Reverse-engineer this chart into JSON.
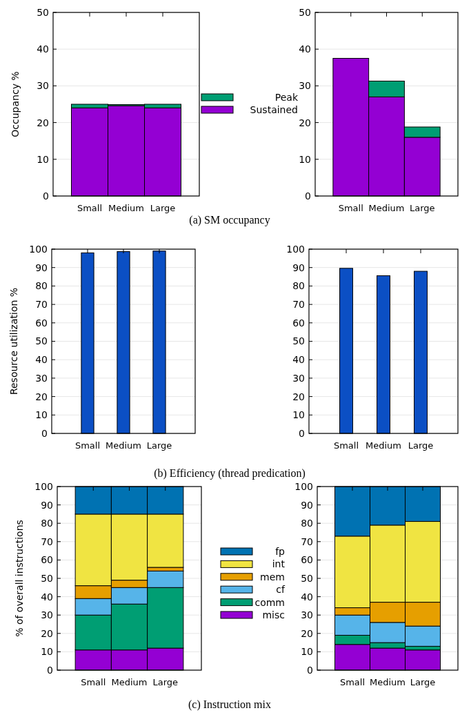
{
  "chart_data": [
    {
      "type": "bar",
      "stacked": true,
      "categories": [
        "Small",
        "Medium",
        "Large"
      ],
      "ylabel": "Occupancy %",
      "ylim": [
        0,
        50
      ],
      "yticks": [
        0,
        10,
        20,
        30,
        40,
        50
      ],
      "grid": "y",
      "legend": "right",
      "annotations": [
        "(a) SM occupancy"
      ],
      "series": [
        {
          "name": "Sustained",
          "color": "#9400d3",
          "values": [
            24,
            24.6,
            24
          ]
        },
        {
          "name": "Peak",
          "color": "#009e73",
          "values": [
            1,
            0.3,
            1
          ]
        }
      ]
    },
    {
      "type": "bar",
      "stacked": true,
      "categories": [
        "Small",
        "Medium",
        "Large"
      ],
      "ylim": [
        0,
        50
      ],
      "yticks": [
        0,
        10,
        20,
        30,
        40,
        50
      ],
      "grid": "y",
      "series": [
        {
          "color": "#9400d3",
          "values": [
            37.5,
            27,
            16
          ]
        },
        {
          "color": "#009e73",
          "values": [
            0,
            4.3,
            2.8
          ]
        }
      ]
    },
    {
      "type": "bar",
      "categories": [
        "Small",
        "Medium",
        "Large"
      ],
      "ylabel": "Resource utilization %",
      "ylim": [
        0,
        100
      ],
      "yticks": [
        0,
        10,
        20,
        30,
        40,
        50,
        60,
        70,
        80,
        90,
        100
      ],
      "grid": "y",
      "annotations": [
        "(b) Efficiency (thread predication)"
      ],
      "series": [
        {
          "color": "#0b4fc4",
          "values": [
            98,
            98.7,
            99
          ]
        }
      ]
    },
    {
      "type": "bar",
      "categories": [
        "Small",
        "Medium",
        "Large"
      ],
      "ylim": [
        0,
        100
      ],
      "yticks": [
        0,
        10,
        20,
        30,
        40,
        50,
        60,
        70,
        80,
        90,
        100
      ],
      "grid": "y",
      "series": [
        {
          "color": "#0b4fc4",
          "values": [
            89.6,
            85.6,
            88
          ]
        }
      ]
    },
    {
      "type": "bar",
      "stacked": true,
      "categories": [
        "Small",
        "Medium",
        "Large"
      ],
      "ylabel": "% of overall instructions",
      "ylim": [
        0,
        100
      ],
      "yticks": [
        0,
        10,
        20,
        30,
        40,
        50,
        60,
        70,
        80,
        90,
        100
      ],
      "grid": "y",
      "legend": "right",
      "annotations": [
        "(c) Instruction mix"
      ],
      "series": [
        {
          "name": "misc",
          "color": "#9400d3",
          "values": [
            11,
            11,
            12
          ]
        },
        {
          "name": "comm",
          "color": "#009e73",
          "values": [
            19,
            25,
            33
          ]
        },
        {
          "name": "cf",
          "color": "#56b4e9",
          "values": [
            9,
            9,
            9
          ]
        },
        {
          "name": "mem",
          "color": "#e69f00",
          "values": [
            7,
            4,
            2
          ]
        },
        {
          "name": "int",
          "color": "#f0e442",
          "values": [
            39,
            36,
            29
          ]
        },
        {
          "name": "fp",
          "color": "#0072b2",
          "values": [
            15,
            15,
            15
          ]
        }
      ]
    },
    {
      "type": "bar",
      "stacked": true,
      "categories": [
        "Small",
        "Medium",
        "Large"
      ],
      "ylim": [
        0,
        100
      ],
      "yticks": [
        0,
        10,
        20,
        30,
        40,
        50,
        60,
        70,
        80,
        90,
        100
      ],
      "grid": "y",
      "series": [
        {
          "color": "#9400d3",
          "values": [
            14,
            12,
            11
          ]
        },
        {
          "color": "#009e73",
          "values": [
            5,
            3,
            2
          ]
        },
        {
          "color": "#56b4e9",
          "values": [
            11,
            11,
            11
          ]
        },
        {
          "color": "#e69f00",
          "values": [
            4,
            11,
            13
          ]
        },
        {
          "color": "#f0e442",
          "values": [
            39,
            42,
            44
          ]
        },
        {
          "color": "#0072b2",
          "values": [
            27,
            21,
            19
          ]
        }
      ]
    }
  ]
}
